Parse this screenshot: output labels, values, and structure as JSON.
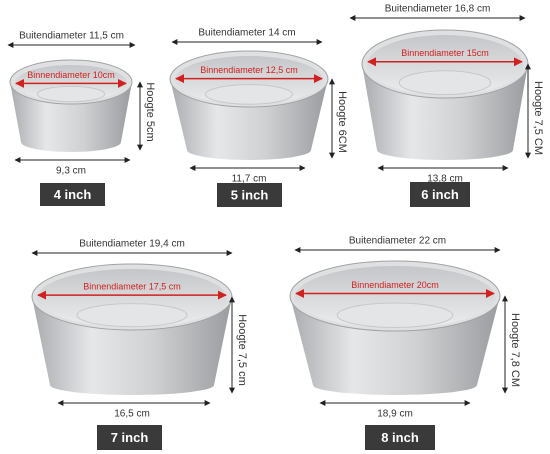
{
  "pans": [
    {
      "outer": "Buitendiameter 11,5 cm",
      "inner": "Binnendiameter 10cm",
      "height": "Hoogte 5cm",
      "bottom": "9,3 cm",
      "size": "4 inch"
    },
    {
      "outer": "Buitendiameter 14 cm",
      "inner": "Binnendiameter 12,5 cm",
      "height": "Hoogte 6CM",
      "bottom": "11,7 cm",
      "size": "5 inch"
    },
    {
      "outer": "Buitendiameter 16,8 cm",
      "inner": "Binnendiameter 15cm",
      "height": "Hoogte 7,5 CM",
      "bottom": "13,8 cm",
      "size": "6 inch"
    },
    {
      "outer": "Buitendiameter 19,4 cm",
      "inner": "Binnendiameter 17,5 cm",
      "height": "Hoogte 7,5 cm",
      "bottom": "16,5 cm",
      "size": "7 inch"
    },
    {
      "outer": "Buitendiameter 22 cm",
      "inner": "Binnendiameter 20cm",
      "height": "Hoogte 7,8 CM",
      "bottom": "18,9 cm",
      "size": "8 inch"
    }
  ]
}
